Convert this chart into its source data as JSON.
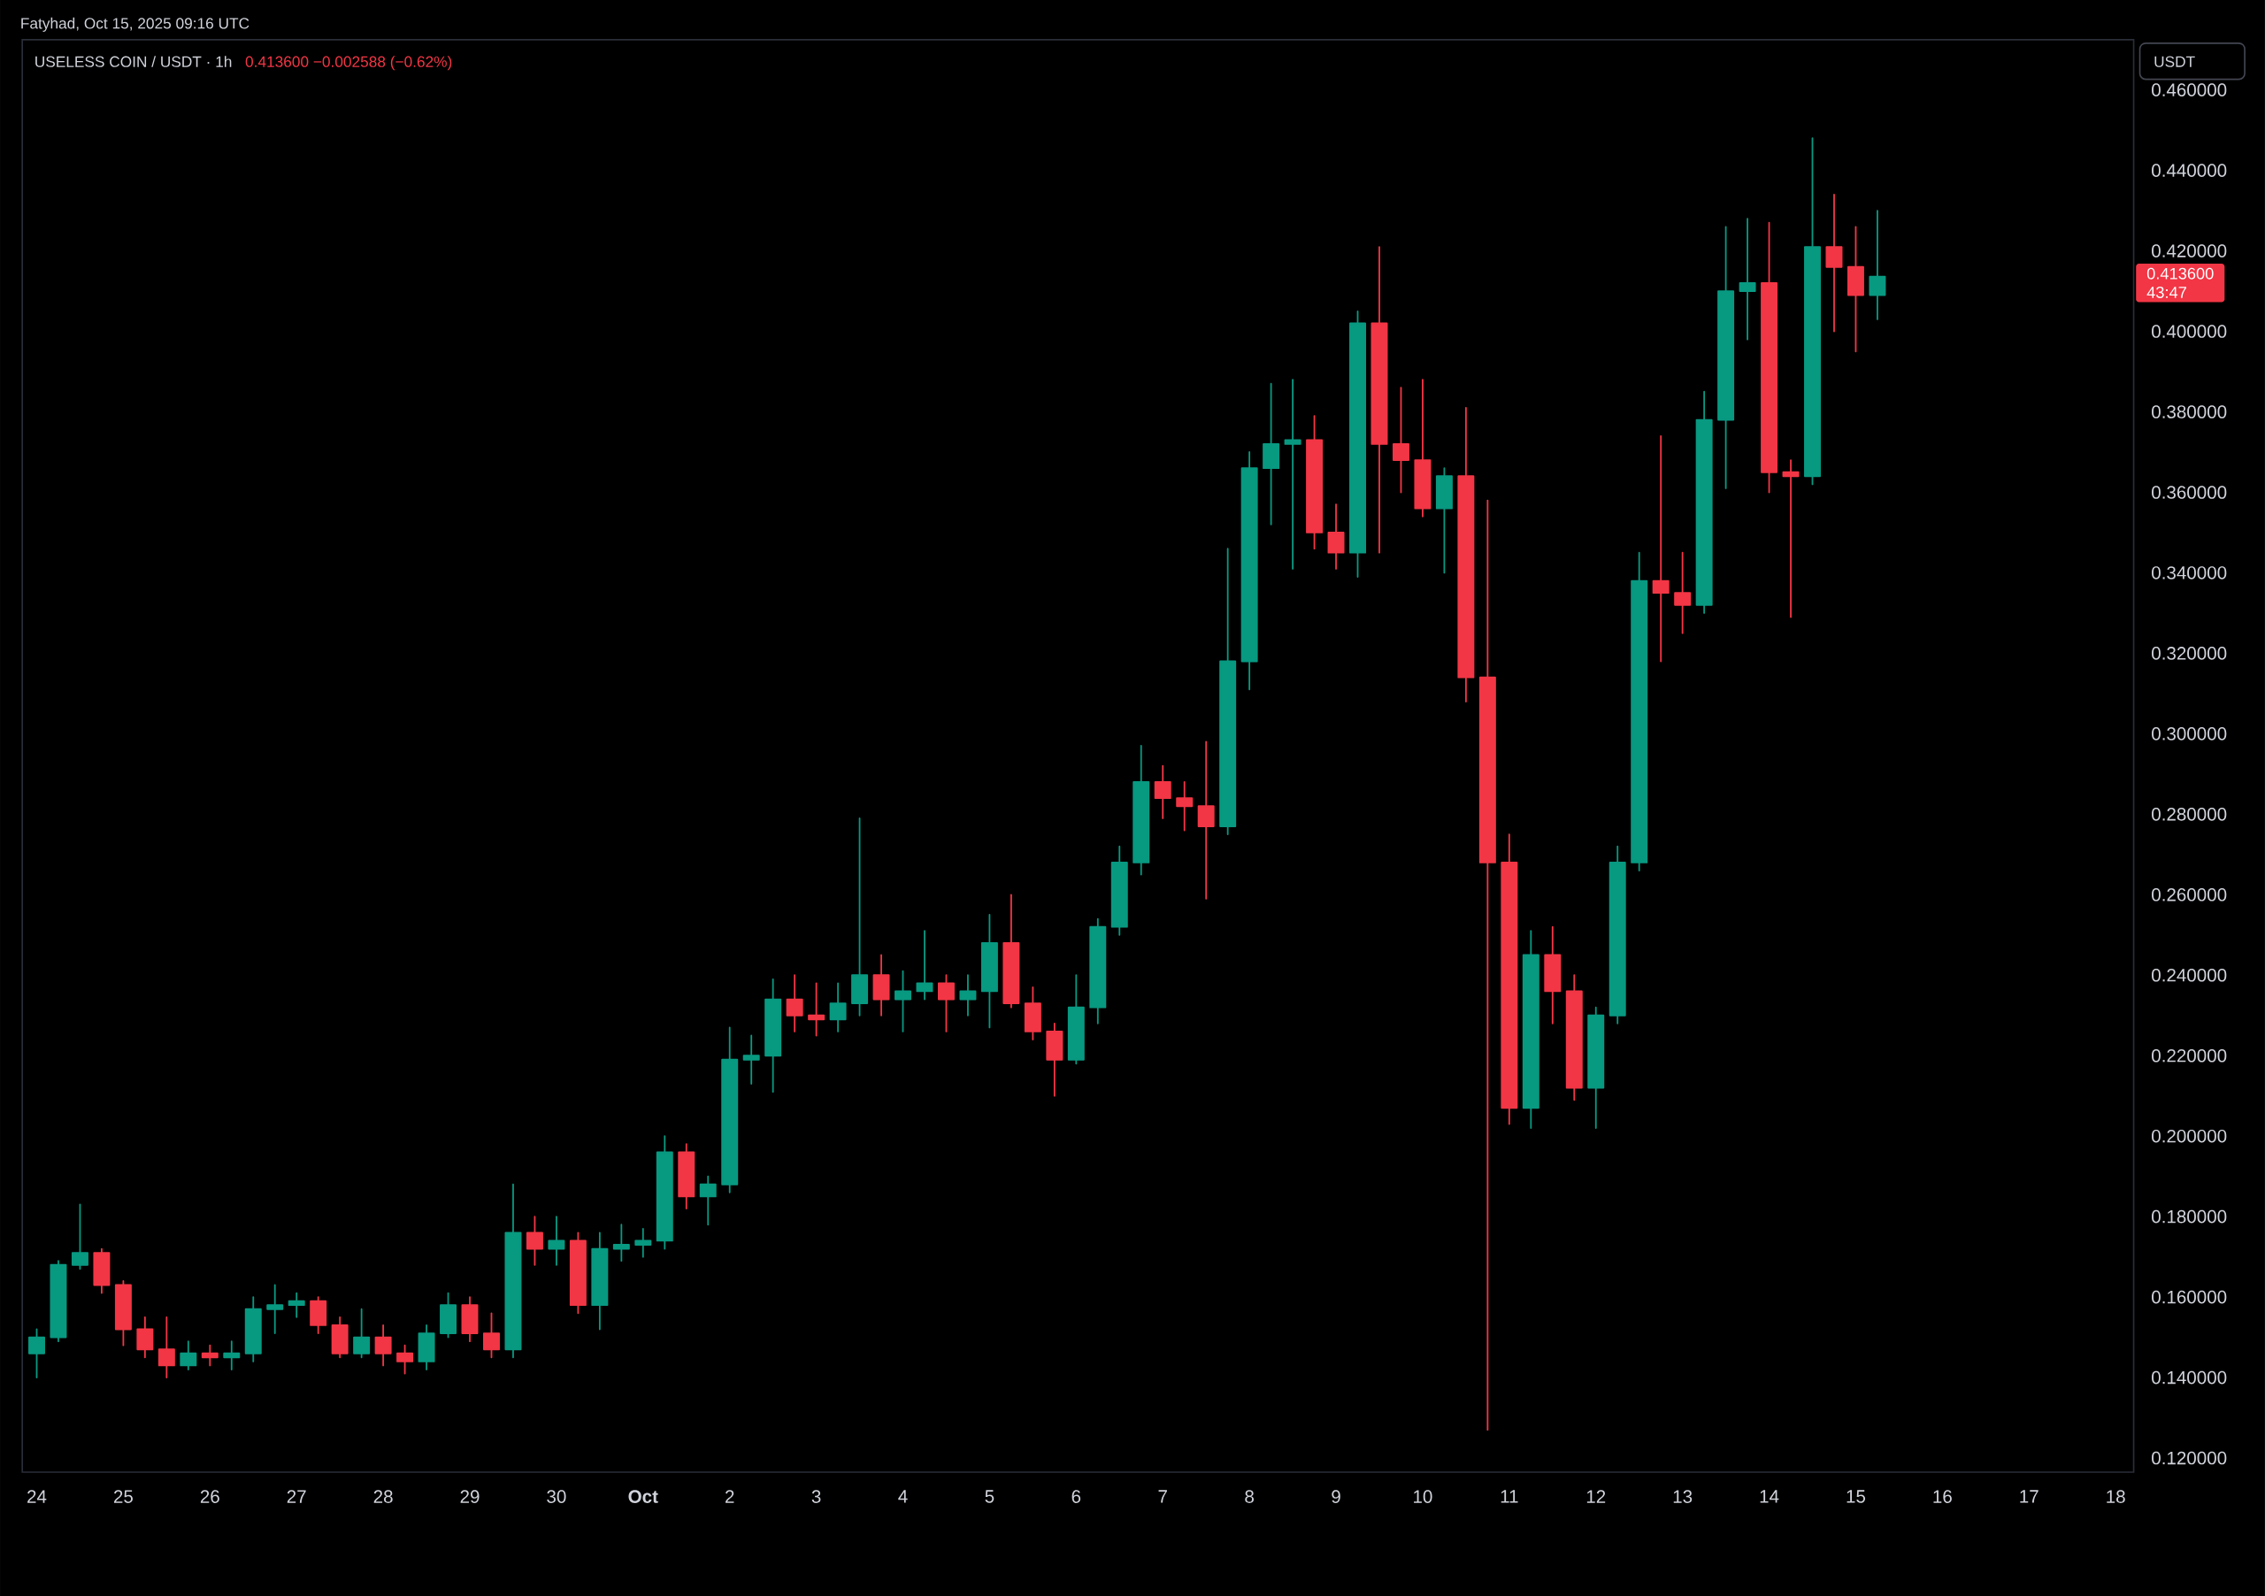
{
  "chart_data": {
    "type": "candlestick",
    "title": "USELESS COIN / USDT · 1h",
    "subtitle": "0.413600 −0.002588 (−0.62%)",
    "ylabel": "USDT",
    "annotations": [
      "Fatyhad, Oct 15, 2025 09:16 UTC",
      "0.413600",
      "43:47"
    ],
    "x": [
      "2025-09-24T00:00",
      "2025-09-24T06:00",
      "2025-09-24T12:00",
      "2025-09-24T18:00",
      "2025-09-25T00:00",
      "2025-09-25T06:00",
      "2025-09-25T12:00",
      "2025-09-25T18:00",
      "2025-09-26T00:00",
      "2025-09-26T06:00",
      "2025-09-26T12:00",
      "2025-09-26T18:00",
      "2025-09-27T00:00",
      "2025-09-27T06:00",
      "2025-09-27T12:00",
      "2025-09-27T18:00",
      "2025-09-28T00:00",
      "2025-09-28T06:00",
      "2025-09-28T12:00",
      "2025-09-28T18:00",
      "2025-09-29T00:00",
      "2025-09-29T06:00",
      "2025-09-29T12:00",
      "2025-09-29T18:00",
      "2025-09-30T00:00",
      "2025-09-30T06:00",
      "2025-09-30T12:00",
      "2025-09-30T18:00",
      "2025-10-01T00:00",
      "2025-10-01T06:00",
      "2025-10-01T12:00",
      "2025-10-01T18:00",
      "2025-10-02T00:00",
      "2025-10-02T06:00",
      "2025-10-02T12:00",
      "2025-10-02T18:00",
      "2025-10-03T00:00",
      "2025-10-03T06:00",
      "2025-10-03T12:00",
      "2025-10-03T18:00",
      "2025-10-04T00:00",
      "2025-10-04T06:00",
      "2025-10-04T12:00",
      "2025-10-04T18:00",
      "2025-10-05T00:00",
      "2025-10-05T06:00",
      "2025-10-05T12:00",
      "2025-10-05T18:00",
      "2025-10-06T00:00",
      "2025-10-06T06:00",
      "2025-10-06T12:00",
      "2025-10-06T18:00",
      "2025-10-07T00:00",
      "2025-10-07T06:00",
      "2025-10-07T12:00",
      "2025-10-07T18:00",
      "2025-10-08T00:00",
      "2025-10-08T06:00",
      "2025-10-08T12:00",
      "2025-10-08T18:00",
      "2025-10-09T00:00",
      "2025-10-09T06:00",
      "2025-10-09T12:00",
      "2025-10-09T18:00",
      "2025-10-10T00:00",
      "2025-10-10T06:00",
      "2025-10-10T12:00",
      "2025-10-10T18:00",
      "2025-10-11T00:00",
      "2025-10-11T06:00",
      "2025-10-11T12:00",
      "2025-10-11T18:00",
      "2025-10-12T00:00",
      "2025-10-12T06:00",
      "2025-10-12T12:00",
      "2025-10-12T18:00",
      "2025-10-13T00:00",
      "2025-10-13T06:00",
      "2025-10-13T12:00",
      "2025-10-13T18:00",
      "2025-10-14T00:00",
      "2025-10-14T06:00",
      "2025-10-14T12:00",
      "2025-10-14T18:00",
      "2025-10-15T00:00",
      "2025-10-15T06:00"
    ],
    "ohlc": [
      [
        0.146,
        0.152,
        0.14,
        0.15
      ],
      [
        0.15,
        0.169,
        0.149,
        0.168
      ],
      [
        0.168,
        0.183,
        0.167,
        0.171
      ],
      [
        0.171,
        0.172,
        0.161,
        0.163
      ],
      [
        0.163,
        0.164,
        0.148,
        0.152
      ],
      [
        0.152,
        0.155,
        0.145,
        0.147
      ],
      [
        0.147,
        0.155,
        0.14,
        0.143
      ],
      [
        0.143,
        0.149,
        0.142,
        0.146
      ],
      [
        0.146,
        0.148,
        0.143,
        0.145
      ],
      [
        0.145,
        0.149,
        0.142,
        0.146
      ],
      [
        0.146,
        0.16,
        0.144,
        0.157
      ],
      [
        0.157,
        0.163,
        0.151,
        0.158
      ],
      [
        0.158,
        0.161,
        0.155,
        0.159
      ],
      [
        0.159,
        0.16,
        0.151,
        0.153
      ],
      [
        0.153,
        0.155,
        0.145,
        0.146
      ],
      [
        0.146,
        0.157,
        0.145,
        0.15
      ],
      [
        0.15,
        0.153,
        0.143,
        0.146
      ],
      [
        0.146,
        0.148,
        0.141,
        0.144
      ],
      [
        0.144,
        0.153,
        0.142,
        0.151
      ],
      [
        0.151,
        0.161,
        0.15,
        0.158
      ],
      [
        0.158,
        0.16,
        0.149,
        0.151
      ],
      [
        0.151,
        0.156,
        0.145,
        0.147
      ],
      [
        0.147,
        0.188,
        0.145,
        0.176
      ],
      [
        0.176,
        0.18,
        0.168,
        0.172
      ],
      [
        0.172,
        0.18,
        0.168,
        0.174
      ],
      [
        0.174,
        0.176,
        0.156,
        0.158
      ],
      [
        0.158,
        0.176,
        0.152,
        0.172
      ],
      [
        0.172,
        0.178,
        0.169,
        0.173
      ],
      [
        0.173,
        0.177,
        0.17,
        0.174
      ],
      [
        0.174,
        0.2,
        0.172,
        0.196
      ],
      [
        0.196,
        0.198,
        0.182,
        0.185
      ],
      [
        0.185,
        0.19,
        0.178,
        0.188
      ],
      [
        0.188,
        0.227,
        0.186,
        0.219
      ],
      [
        0.219,
        0.225,
        0.213,
        0.22
      ],
      [
        0.22,
        0.239,
        0.211,
        0.234
      ],
      [
        0.234,
        0.24,
        0.226,
        0.23
      ],
      [
        0.23,
        0.238,
        0.225,
        0.229
      ],
      [
        0.229,
        0.238,
        0.226,
        0.233
      ],
      [
        0.233,
        0.279,
        0.23,
        0.24
      ],
      [
        0.24,
        0.245,
        0.23,
        0.234
      ],
      [
        0.234,
        0.241,
        0.226,
        0.236
      ],
      [
        0.236,
        0.251,
        0.234,
        0.238
      ],
      [
        0.238,
        0.24,
        0.226,
        0.234
      ],
      [
        0.234,
        0.24,
        0.23,
        0.236
      ],
      [
        0.236,
        0.255,
        0.227,
        0.248
      ],
      [
        0.248,
        0.26,
        0.232,
        0.233
      ],
      [
        0.233,
        0.237,
        0.224,
        0.226
      ],
      [
        0.226,
        0.228,
        0.21,
        0.219
      ],
      [
        0.219,
        0.24,
        0.218,
        0.232
      ],
      [
        0.232,
        0.254,
        0.228,
        0.252
      ],
      [
        0.252,
        0.272,
        0.25,
        0.268
      ],
      [
        0.268,
        0.297,
        0.265,
        0.288
      ],
      [
        0.288,
        0.292,
        0.279,
        0.284
      ],
      [
        0.284,
        0.288,
        0.276,
        0.282
      ],
      [
        0.282,
        0.298,
        0.259,
        0.277
      ],
      [
        0.277,
        0.346,
        0.275,
        0.318
      ],
      [
        0.318,
        0.37,
        0.311,
        0.366
      ],
      [
        0.366,
        0.387,
        0.352,
        0.372
      ],
      [
        0.372,
        0.388,
        0.341,
        0.373
      ],
      [
        0.373,
        0.379,
        0.346,
        0.35
      ],
      [
        0.35,
        0.357,
        0.341,
        0.345
      ],
      [
        0.345,
        0.405,
        0.339,
        0.402
      ],
      [
        0.402,
        0.421,
        0.345,
        0.372
      ],
      [
        0.372,
        0.386,
        0.36,
        0.368
      ],
      [
        0.368,
        0.388,
        0.354,
        0.356
      ],
      [
        0.356,
        0.366,
        0.34,
        0.364
      ],
      [
        0.364,
        0.381,
        0.308,
        0.314
      ],
      [
        0.314,
        0.358,
        0.127,
        0.268
      ],
      [
        0.268,
        0.275,
        0.203,
        0.207
      ],
      [
        0.207,
        0.251,
        0.202,
        0.245
      ],
      [
        0.245,
        0.252,
        0.228,
        0.236
      ],
      [
        0.236,
        0.24,
        0.209,
        0.212
      ],
      [
        0.212,
        0.232,
        0.202,
        0.23
      ],
      [
        0.23,
        0.272,
        0.228,
        0.268
      ],
      [
        0.268,
        0.345,
        0.266,
        0.338
      ],
      [
        0.338,
        0.374,
        0.318,
        0.335
      ],
      [
        0.335,
        0.345,
        0.325,
        0.332
      ],
      [
        0.332,
        0.385,
        0.33,
        0.378
      ],
      [
        0.378,
        0.426,
        0.361,
        0.41
      ],
      [
        0.41,
        0.428,
        0.398,
        0.412
      ],
      [
        0.412,
        0.427,
        0.36,
        0.365
      ],
      [
        0.365,
        0.368,
        0.329,
        0.364
      ],
      [
        0.364,
        0.448,
        0.362,
        0.421
      ],
      [
        0.421,
        0.434,
        0.4,
        0.416
      ],
      [
        0.416,
        0.426,
        0.395,
        0.409
      ],
      [
        0.409,
        0.43,
        0.403,
        0.4136
      ]
    ],
    "colors": [
      "#089981",
      "#089981",
      "#089981",
      "#f23645",
      "#f23645",
      "#f23645",
      "#f23645",
      "#089981",
      "#f23645",
      "#089981",
      "#089981",
      "#089981",
      "#089981",
      "#f23645",
      "#f23645",
      "#089981",
      "#f23645",
      "#f23645",
      "#089981",
      "#089981",
      "#f23645",
      "#f23645",
      "#089981",
      "#f23645",
      "#089981",
      "#f23645",
      "#089981",
      "#089981",
      "#089981",
      "#089981",
      "#f23645",
      "#089981",
      "#089981",
      "#089981",
      "#089981",
      "#f23645",
      "#f23645",
      "#089981",
      "#089981",
      "#f23645",
      "#089981",
      "#089981",
      "#f23645",
      "#089981",
      "#089981",
      "#f23645",
      "#f23645",
      "#f23645",
      "#089981",
      "#089981",
      "#089981",
      "#089981",
      "#f23645",
      "#f23645",
      "#f23645",
      "#089981",
      "#089981",
      "#089981",
      "#089981",
      "#f23645",
      "#f23645",
      "#089981",
      "#f23645",
      "#f23645",
      "#f23645",
      "#089981",
      "#f23645",
      "#f23645",
      "#f23645",
      "#089981",
      "#f23645",
      "#f23645",
      "#089981",
      "#089981",
      "#089981",
      "#f23645",
      "#f23645",
      "#089981",
      "#089981",
      "#089981",
      "#f23645",
      "#f23645",
      "#089981",
      "#f23645",
      "#f23645",
      "#089981"
    ],
    "xlim": [
      "2025-09-23T20:00",
      "2025-10-18T05:00"
    ],
    "ylim": [
      0.1165,
      0.4725
    ],
    "xticks": [
      {
        "value": "2025-09-24",
        "label": "24"
      },
      {
        "value": "2025-09-25",
        "label": "25"
      },
      {
        "value": "2025-09-26",
        "label": "26"
      },
      {
        "value": "2025-09-27",
        "label": "27"
      },
      {
        "value": "2025-09-28",
        "label": "28"
      },
      {
        "value": "2025-09-29",
        "label": "29"
      },
      {
        "value": "2025-09-30",
        "label": "30"
      },
      {
        "value": "2025-10-01",
        "label": "Oct"
      },
      {
        "value": "2025-10-02",
        "label": "2"
      },
      {
        "value": "2025-10-03",
        "label": "3"
      },
      {
        "value": "2025-10-04",
        "label": "4"
      },
      {
        "value": "2025-10-05",
        "label": "5"
      },
      {
        "value": "2025-10-06",
        "label": "6"
      },
      {
        "value": "2025-10-07",
        "label": "7"
      },
      {
        "value": "2025-10-08",
        "label": "8"
      },
      {
        "value": "2025-10-09",
        "label": "9"
      },
      {
        "value": "2025-10-10",
        "label": "10"
      },
      {
        "value": "2025-10-11",
        "label": "11"
      },
      {
        "value": "2025-10-12",
        "label": "12"
      },
      {
        "value": "2025-10-13",
        "label": "13"
      },
      {
        "value": "2025-10-14",
        "label": "14"
      },
      {
        "value": "2025-10-15",
        "label": "15"
      },
      {
        "value": "2025-10-16",
        "label": "16"
      },
      {
        "value": "2025-10-17",
        "label": "17"
      },
      {
        "value": "2025-10-18",
        "label": "18"
      }
    ],
    "yticks": [
      {
        "value": 0.12,
        "label": "0.120000"
      },
      {
        "value": 0.14,
        "label": "0.140000"
      },
      {
        "value": 0.16,
        "label": "0.160000"
      },
      {
        "value": 0.18,
        "label": "0.180000"
      },
      {
        "value": 0.2,
        "label": "0.200000"
      },
      {
        "value": 0.22,
        "label": "0.220000"
      },
      {
        "value": 0.24,
        "label": "0.240000"
      },
      {
        "value": 0.26,
        "label": "0.260000"
      },
      {
        "value": 0.28,
        "label": "0.280000"
      },
      {
        "value": 0.3,
        "label": "0.300000"
      },
      {
        "value": 0.32,
        "label": "0.320000"
      },
      {
        "value": 0.34,
        "label": "0.340000"
      },
      {
        "value": 0.36,
        "label": "0.360000"
      },
      {
        "value": 0.38,
        "label": "0.380000"
      },
      {
        "value": 0.4,
        "label": "0.400000"
      },
      {
        "value": 0.42,
        "label": "0.420000"
      },
      {
        "value": 0.44,
        "label": "0.440000"
      },
      {
        "value": 0.46,
        "label": "0.460000"
      }
    ]
  }
}
